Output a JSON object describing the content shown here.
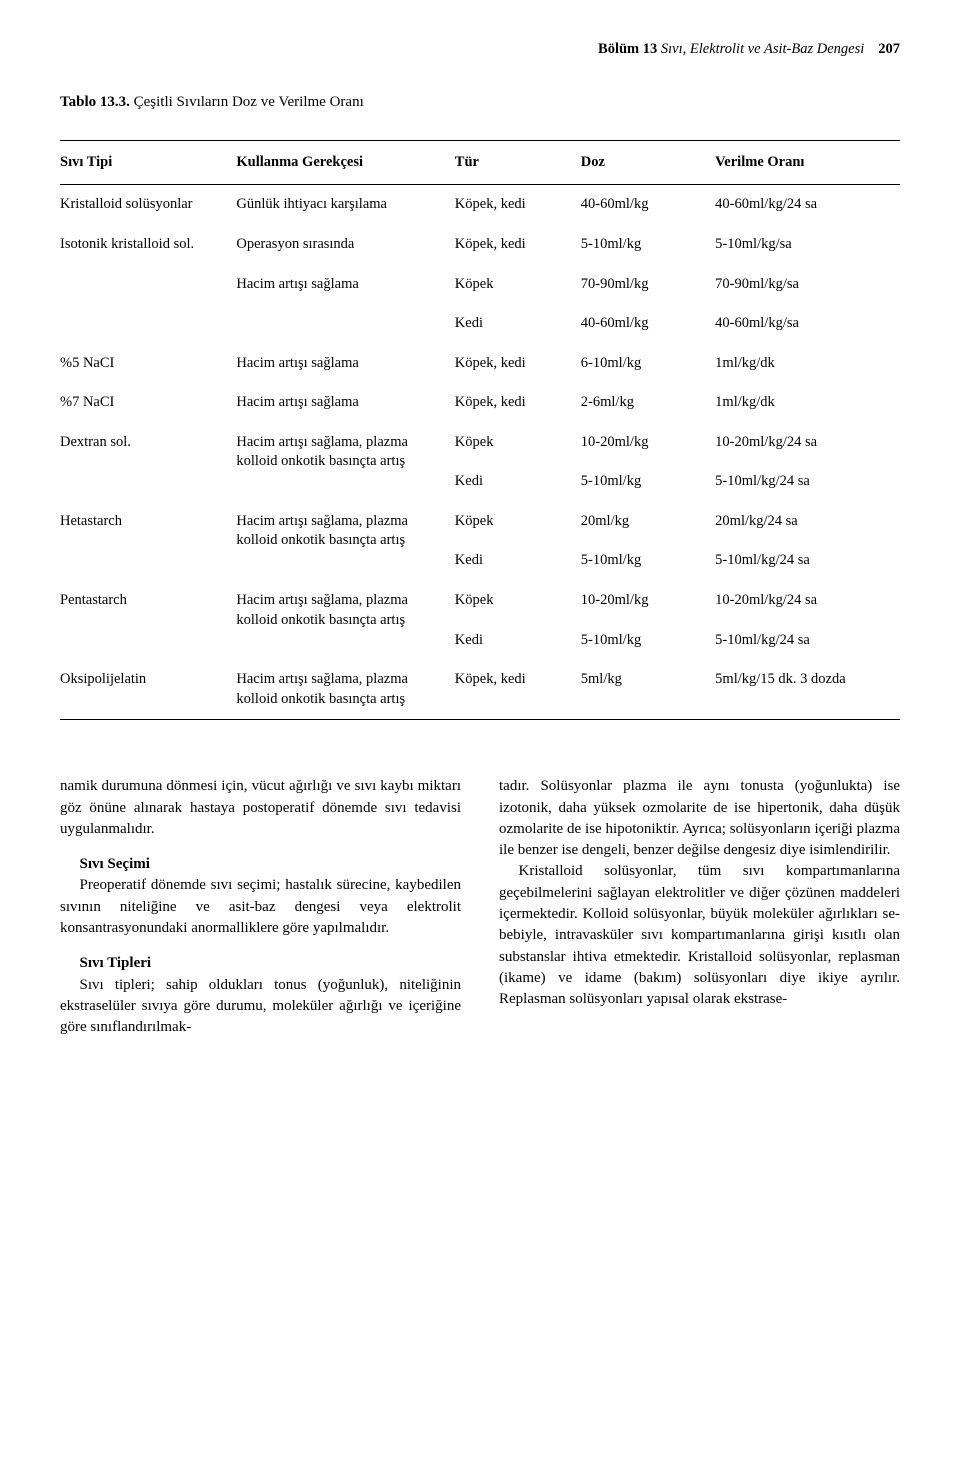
{
  "header": {
    "bolum_label": "Bölüm 13",
    "chapter_title": "Sıvı, Elektrolit ve Asit-Baz Dengesi",
    "page_number": "207"
  },
  "table": {
    "caption_bold": "Tablo 13.3.",
    "caption_rest": " Çeşitli Sıvıların Doz ve Verilme Oranı",
    "headers": {
      "c1": "Sıvı Tipi",
      "c2": "Kullanma Gerekçesi",
      "c3": "Tür",
      "c4": "Doz",
      "c5": "Verilme Oranı"
    },
    "rows": {
      "r1": {
        "c1": "Kristalloid solüsyonlar",
        "c2": "Günlük ihtiyacı karşılama",
        "c3": "Köpek, kedi",
        "c4": "40-60ml/kg",
        "c5": "40-60ml/kg/24 sa"
      },
      "r2": {
        "c1": "Isotonik kristalloid sol.",
        "c2": "Operasyon sırasında",
        "c3": "Köpek, kedi",
        "c4": "5-10ml/kg",
        "c5": "5-10ml/kg/sa"
      },
      "r3": {
        "c1": "",
        "c2": "Hacim artışı sağlama",
        "c3": "Köpek",
        "c4": "70-90ml/kg",
        "c5": "70-90ml/kg/sa"
      },
      "r4": {
        "c1": "",
        "c2": "",
        "c3": "Kedi",
        "c4": "40-60ml/kg",
        "c5": "40-60ml/kg/sa"
      },
      "r5": {
        "c1": "%5 NaCI",
        "c2": "Hacim artışı sağlama",
        "c3": "Köpek, kedi",
        "c4": "6-10ml/kg",
        "c5": "1ml/kg/dk"
      },
      "r6": {
        "c1": "%7 NaCI",
        "c2": "Hacim artışı sağlama",
        "c3": "Köpek, kedi",
        "c4": "2-6ml/kg",
        "c5": "1ml/kg/dk"
      },
      "r7": {
        "c1": "Dextran sol.",
        "c2": "Hacim artışı sağlama, plazma kolloid onkotik basınçta artış",
        "c3": "Köpek",
        "c4": "10-20ml/kg",
        "c5": "10-20ml/kg/24 sa"
      },
      "r7b": {
        "c3": "Kedi",
        "c4": "5-10ml/kg",
        "c5": "5-10ml/kg/24 sa"
      },
      "r8": {
        "c1": "Hetastarch",
        "c2": "Hacim artışı sağlama, plazma kolloid onkotik basınçta artış",
        "c3": "Köpek",
        "c4": "20ml/kg",
        "c5": "20ml/kg/24 sa"
      },
      "r8b": {
        "c3": "Kedi",
        "c4": "5-10ml/kg",
        "c5": "5-10ml/kg/24 sa"
      },
      "r9": {
        "c1": "Pentastarch",
        "c2": "Hacim artışı sağlama, plazma kolloid onkotik basınçta artış",
        "c3": "Köpek",
        "c4": "10-20ml/kg",
        "c5": "10-20ml/kg/24 sa"
      },
      "r9b": {
        "c3": "Kedi",
        "c4": "5-10ml/kg",
        "c5": "5-10ml/kg/24 sa"
      },
      "r10": {
        "c1": "Oksipolijelatin",
        "c2": "Hacim artışı sağlama, plazma kolloid onkotik basınçta artış",
        "c3": "Köpek, kedi",
        "c4": "5ml/kg",
        "c5": "5ml/kg/15 dk. 3 dozda"
      }
    }
  },
  "body": {
    "left": {
      "p1": "namik durumuna dönmesi için, vücut ağırlığı ve sıvı kaybı miktarı göz önüne alınarak hastaya postoperatif dönemde sıvı tedavisi uygulanma­lıdır.",
      "h1": "Sıvı Seçimi",
      "p2": "Preoperatif dönemde sıvı seçimi; hastalık sü­recine, kaybedilen sıvının niteliğine ve asit-baz dengesi veya elektrolit konsantrasyonundaki anormalliklere göre yapılmalıdır.",
      "h2": "Sıvı Tipleri",
      "p3": "Sıvı tipleri; sahip oldukları tonus (yoğunluk), niteliğinin ekstraselüler sıvıya göre durumu, mo­leküler ağırlığı ve içeriğine göre sınıflandırılmak-"
    },
    "right": {
      "p1": "tadır. Solüsyonlar plazma ile aynı tonusta (yo­ğunlukta) ise izotonik, daha yüksek ozmolarite de ise hipertonik, daha düşük ozmolarite de ise hipotoniktir. Ayrıca; solüsyonların içeriği plaz­ma ile benzer ise dengeli, benzer değilse denge­siz diye isimlendirilir.",
      "p2": "Kristalloid solüsyonlar, tüm sıvı kompartı­manlarına geçebilmelerini sağlayan elektrolitler ve diğer çözünen maddeleri içermektedir. Kol­loid solüsyonlar, büyük moleküler ağırlıkları se­bebiyle, intravasküler sıvı kompartımanlarına gi­rişi kısıtlı olan substanslar ihtiva etmektedir. Kristalloid solüsyonlar, replasman (ikame) ve idame (bakım) solüsyonları diye ikiye ayrılır. Replasman solüsyonları yapısal olarak ekstrase-"
    }
  }
}
